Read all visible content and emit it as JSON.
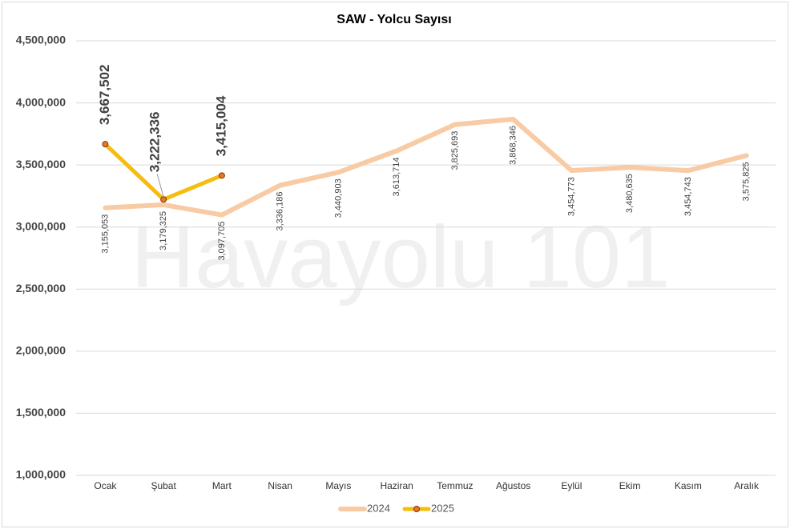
{
  "chart_data": {
    "type": "line",
    "title": "SAW - Yolcu Sayısı",
    "watermark": "Havayolu 101",
    "categories": [
      "Ocak",
      "Şubat",
      "Mart",
      "Nisan",
      "Mayıs",
      "Haziran",
      "Temmuz",
      "Ağustos",
      "Eylül",
      "Ekim",
      "Kasım",
      "Aralık"
    ],
    "series": [
      {
        "name": "2024",
        "color": "#f8cba5",
        "values": [
          3155053,
          3179325,
          3097705,
          3336186,
          3440903,
          3613714,
          3825693,
          3868346,
          3454773,
          3480635,
          3454743,
          3575825
        ],
        "value_labels": [
          "3,155,053",
          "3,179,325",
          "3,097,705",
          "3,336,186",
          "3,440,903",
          "3,613,714",
          "3,825,693",
          "3,868,346",
          "3,454,773",
          "3,480,635",
          "3,454,743",
          "3,575,825"
        ]
      },
      {
        "name": "2025",
        "color": "#f5bd0f",
        "marker_color": "#e8762d",
        "values": [
          3667502,
          3222336,
          3415004,
          null,
          null,
          null,
          null,
          null,
          null,
          null,
          null,
          null
        ],
        "value_labels": [
          "3,667,502",
          "3,222,336",
          "3,415,004",
          null,
          null,
          null,
          null,
          null,
          null,
          null,
          null,
          null
        ]
      }
    ],
    "ylim": [
      1000000,
      4500000
    ],
    "yticks": [
      {
        "value": 1000000,
        "label": "1,000,000"
      },
      {
        "value": 1500000,
        "label": "1,500,000"
      },
      {
        "value": 2000000,
        "label": "2,000,000"
      },
      {
        "value": 2500000,
        "label": "2,500,000"
      },
      {
        "value": 3000000,
        "label": "3,000,000"
      },
      {
        "value": 3500000,
        "label": "3,500,000"
      },
      {
        "value": 4000000,
        "label": "4,000,000"
      },
      {
        "value": 4500000,
        "label": "4,500,000"
      }
    ],
    "grid": true,
    "legend": "bottom"
  }
}
